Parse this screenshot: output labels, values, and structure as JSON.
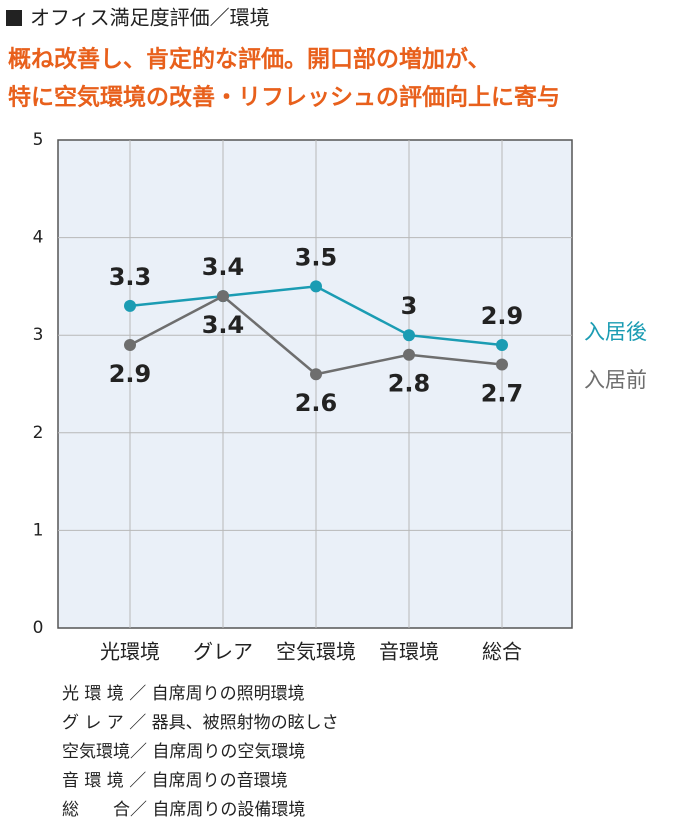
{
  "chart_data": {
    "type": "line",
    "title": "オフィス満足度評価／環境",
    "subtitle": [
      "概ね改善し、肯定的な評価。開口部の増加が、",
      "特に空気環境の改善・リフレッシュの評価向上に寄与"
    ],
    "categories": [
      "光環境",
      "グレア",
      "空気環境",
      "音環境",
      "総合"
    ],
    "series": [
      {
        "name": "入居後",
        "color": "#1b9cb3",
        "values": [
          3.3,
          3.4,
          3.5,
          3.0,
          2.9
        ]
      },
      {
        "name": "入居前",
        "color": "#6e6e6e",
        "values": [
          2.9,
          3.4,
          2.6,
          2.8,
          2.7
        ]
      }
    ],
    "ylim": [
      0,
      5
    ],
    "yticks": [
      0,
      1,
      2,
      3,
      4,
      5
    ],
    "grid": true,
    "notes": [
      "光 環 境 ／ 自席周りの照明環境",
      "グ レ ア ／ 器具、被照射物の眩しさ",
      "空気環境／ 自席周りの空気環境",
      "音 環 境 ／ 自席周りの音環境",
      "総　　合／ 自席周りの設備環境"
    ]
  }
}
